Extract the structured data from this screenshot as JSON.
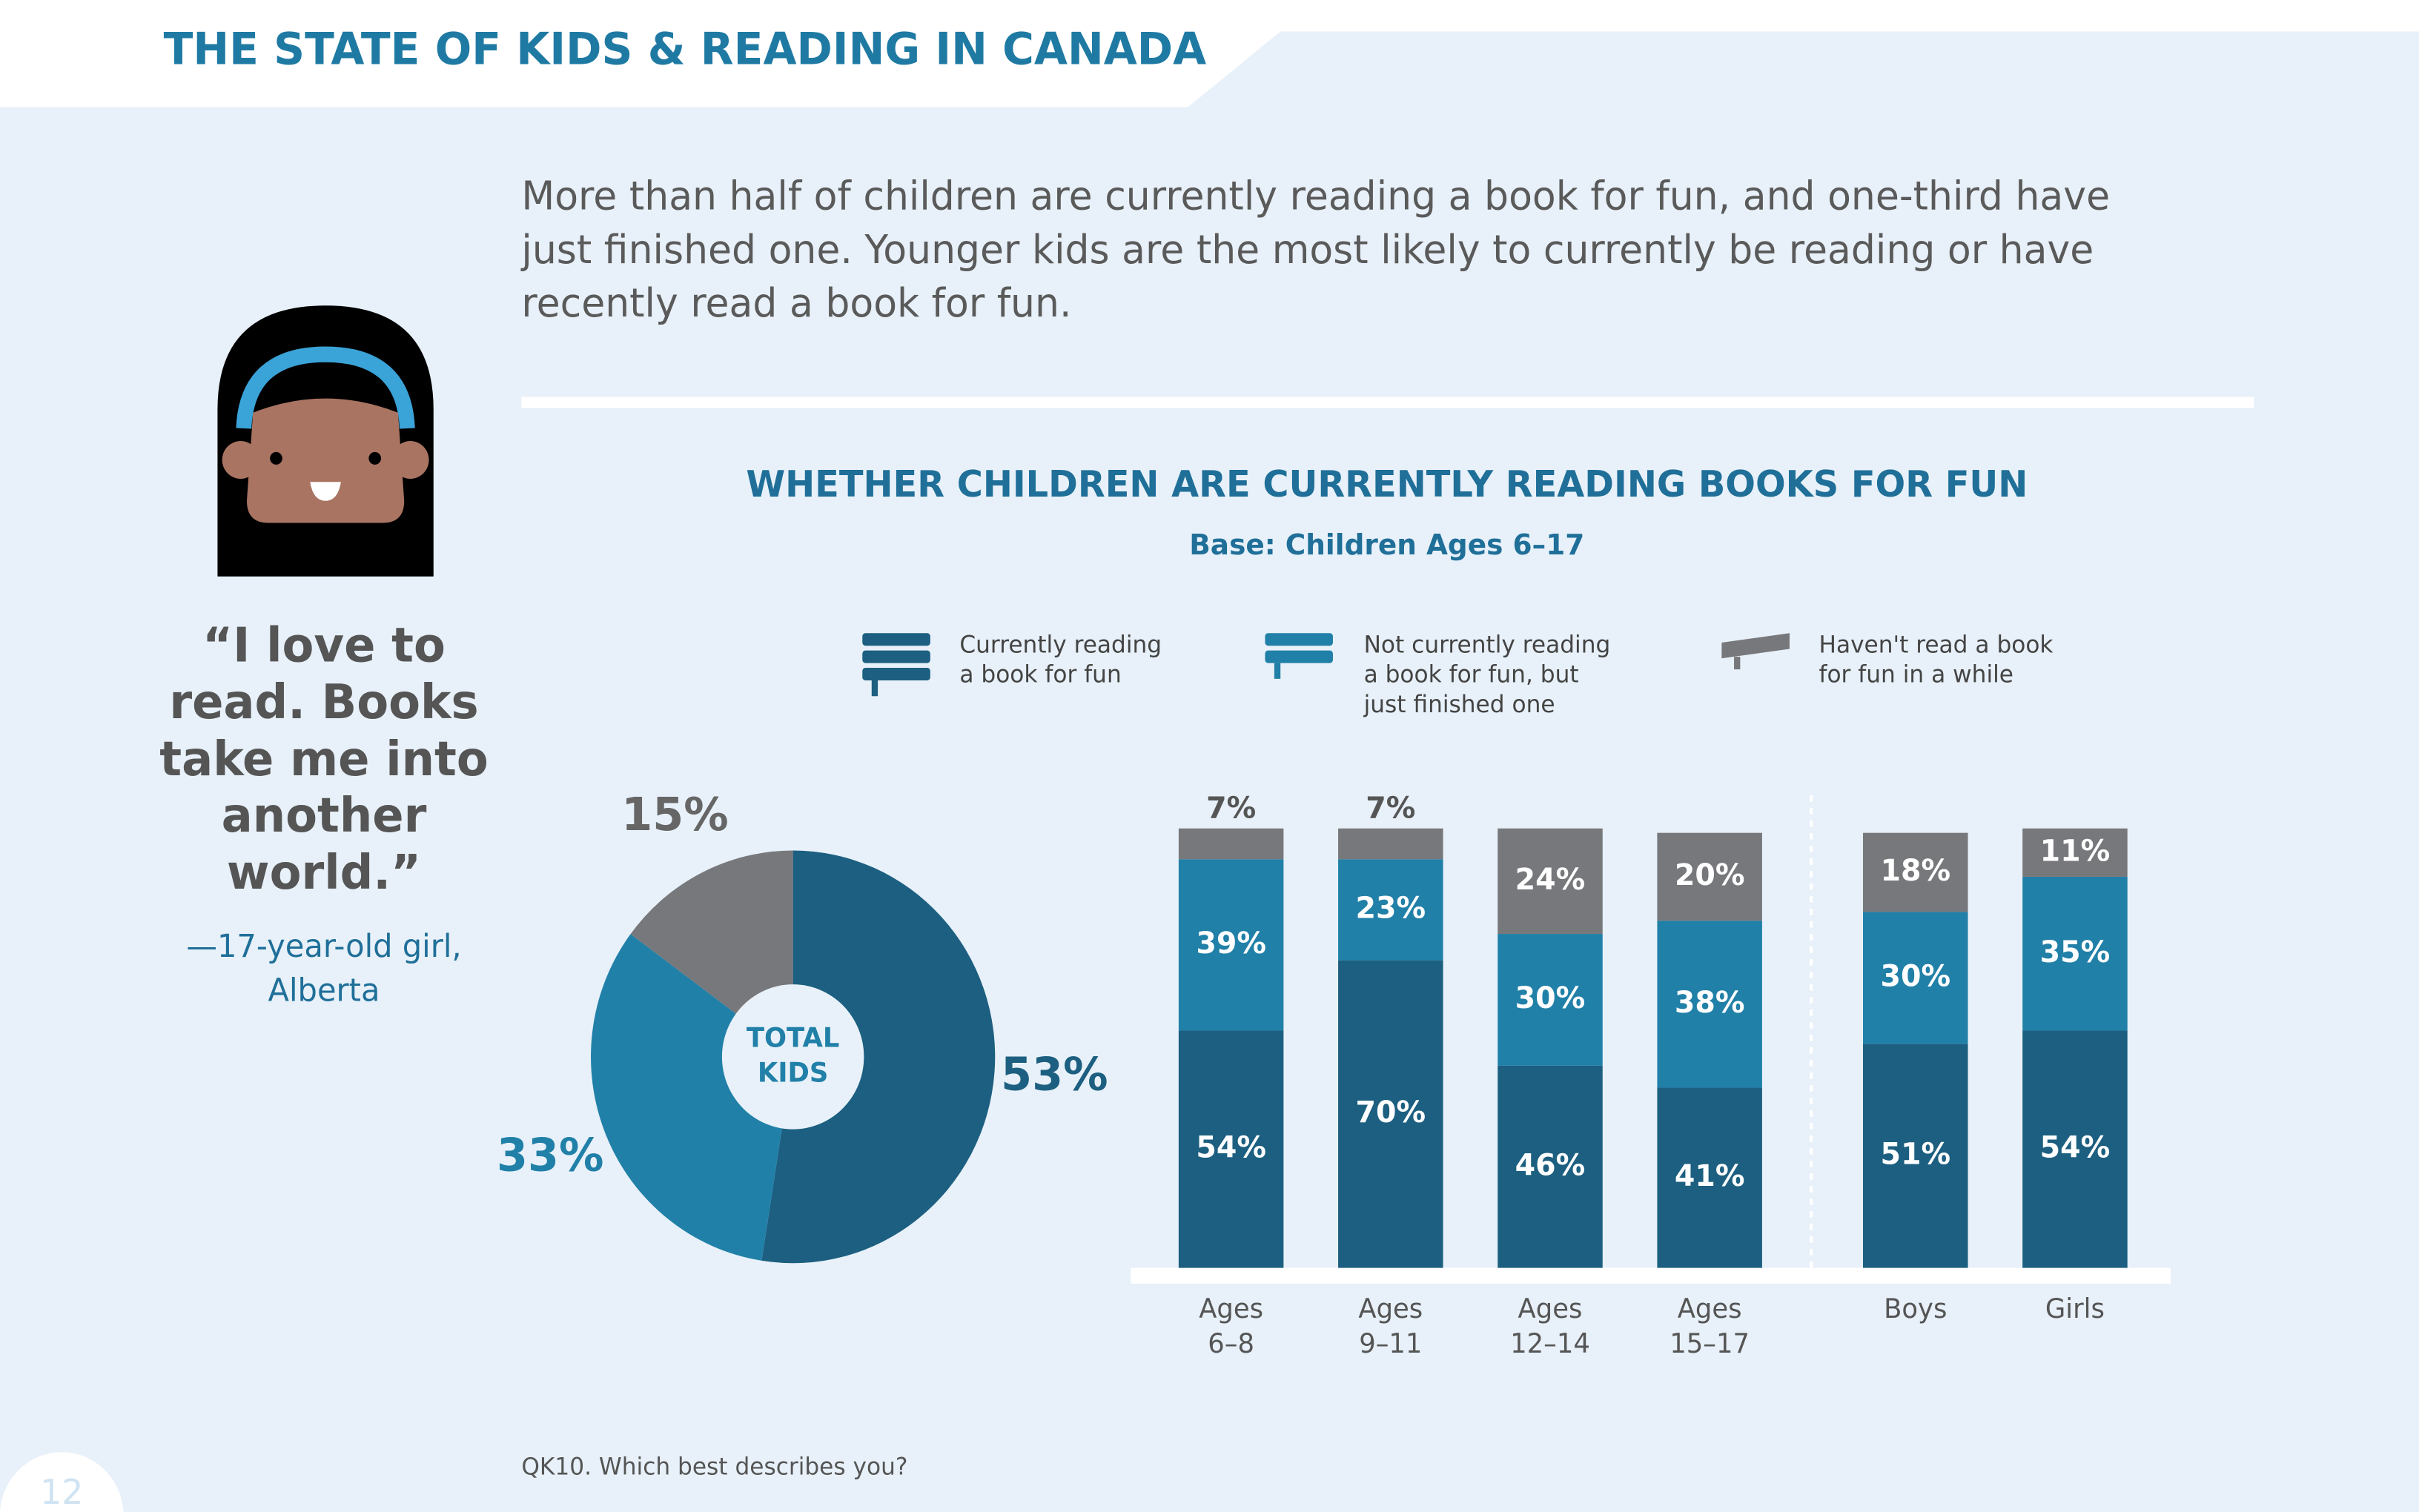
{
  "header": {
    "title": "THE STATE OF KIDS & READING IN CANADA"
  },
  "intro": [
    "More than half of children are currently reading a book for fun, and one-third have",
    "just finished one. Younger kids are the most likely to currently be reading or have",
    "recently read a book for fun."
  ],
  "quote": {
    "lines": [
      "“I love to",
      "read. Books",
      "take me into",
      "another",
      "world.”"
    ],
    "attribution": [
      "—17-year-old girl,",
      "Alberta"
    ]
  },
  "section": {
    "title": "WHETHER CHILDREN ARE CURRENTLY READING BOOKS FOR FUN",
    "subtitle": "Base: Children Ages 6–17"
  },
  "chart_data": [
    {
      "type": "pie",
      "center_label": [
        "TOTAL",
        "KIDS"
      ],
      "values": [
        53,
        33,
        15
      ],
      "value_labels": [
        "53%",
        "33%",
        "15%"
      ],
      "colors": [
        "#1c5f80",
        "#2180a8",
        "#77787b"
      ]
    },
    {
      "type": "bar",
      "stacked": true,
      "categories": [
        [
          "Ages",
          "6–8"
        ],
        [
          "Ages",
          "9–11"
        ],
        [
          "Ages",
          "12–14"
        ],
        [
          "Ages",
          "15–17"
        ],
        [
          "Boys"
        ],
        [
          "Girls"
        ]
      ],
      "series": [
        {
          "name": [
            "Currently reading",
            "a book for fun"
          ],
          "color": "#1c5f80",
          "values": [
            54,
            70,
            46,
            41,
            51,
            54
          ],
          "value_labels": [
            "54%",
            "70%",
            "46%",
            "41%",
            "51%",
            "54%"
          ]
        },
        {
          "name": [
            "Not currently reading",
            "a book for fun, but",
            "just finished one"
          ],
          "color": "#2180a8",
          "values": [
            39,
            23,
            30,
            38,
            30,
            35
          ],
          "value_labels": [
            "39%",
            "23%",
            "30%",
            "38%",
            "30%",
            "35%"
          ]
        },
        {
          "name": [
            "Haven't read a book",
            "for fun in a while"
          ],
          "color": "#77787b",
          "values": [
            7,
            7,
            24,
            20,
            18,
            11
          ],
          "value_labels": [
            "7%",
            "7%",
            "24%",
            "20%",
            "18%",
            "11%"
          ]
        }
      ],
      "ylim": [
        0,
        100
      ]
    }
  ],
  "footnote": "QK10. Which best describes you?",
  "page_number": "12"
}
